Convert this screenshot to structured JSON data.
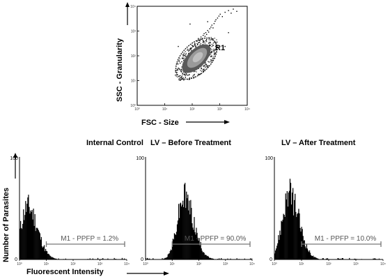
{
  "chart_data": [
    {
      "type": "scatter",
      "xlabel": "FSC - Size",
      "ylabel": "SSC - Granularity",
      "xscale": "log",
      "yscale": "log",
      "xlim": [
        1,
        10000
      ],
      "ylim": [
        1,
        10000
      ],
      "xticks": [
        "10⁰",
        "10¹",
        "10²",
        "10³",
        "10⁴"
      ],
      "yticks": [
        "10⁰",
        "10¹",
        "10²",
        "10³",
        "10⁴"
      ],
      "gate": {
        "name": "R1",
        "center": [
          150,
          280
        ]
      },
      "sample_points": [
        [
          60,
          90
        ],
        [
          70,
          120
        ],
        [
          80,
          200
        ],
        [
          90,
          150
        ],
        [
          100,
          260
        ],
        [
          110,
          180
        ],
        [
          120,
          330
        ],
        [
          130,
          240
        ],
        [
          140,
          410
        ],
        [
          150,
          300
        ],
        [
          160,
          520
        ],
        [
          170,
          360
        ],
        [
          180,
          440
        ],
        [
          200,
          600
        ],
        [
          220,
          500
        ],
        [
          240,
          700
        ],
        [
          260,
          820
        ],
        [
          280,
          640
        ],
        [
          300,
          900
        ],
        [
          320,
          760
        ],
        [
          350,
          1100
        ],
        [
          380,
          950
        ],
        [
          420,
          1300
        ],
        [
          460,
          1500
        ],
        [
          500,
          1800
        ],
        [
          550,
          1400
        ],
        [
          600,
          2100
        ],
        [
          650,
          2600
        ],
        [
          700,
          3000
        ],
        [
          800,
          3500
        ],
        [
          900,
          4200
        ],
        [
          1000,
          5000
        ],
        [
          1200,
          4000
        ],
        [
          1500,
          6000
        ],
        [
          2000,
          7000
        ],
        [
          2500,
          5500
        ],
        [
          3000,
          8000
        ],
        [
          4000,
          6500
        ],
        [
          40,
          60
        ],
        [
          30,
          250
        ],
        [
          250,
          30
        ],
        [
          500,
          70
        ],
        [
          1500,
          250
        ],
        [
          80,
          2000
        ],
        [
          350,
          2500
        ],
        [
          2000,
          900
        ],
        [
          600,
          150
        ]
      ]
    },
    {
      "type": "histogram",
      "title": "Internal Control",
      "xscale": "log",
      "xlim": [
        1,
        10000
      ],
      "ylim": [
        0,
        100
      ],
      "ylabel": "Number of Parasites",
      "xlabel": "Fluorescent Intensity",
      "peak_x": 2.0,
      "peak_height": 53,
      "marker": {
        "label": "M1 - PPFP = 1.2%",
        "range": [
          10,
          10000
        ]
      }
    },
    {
      "type": "histogram",
      "title": "LV – Before Treatment",
      "xscale": "log",
      "xlim": [
        1,
        10000
      ],
      "ylim": [
        0,
        100
      ],
      "peak_x": 28,
      "peak_height": 63,
      "marker": {
        "label": "M1 - PPFP = 90.0%",
        "range": [
          10,
          10000
        ]
      }
    },
    {
      "type": "histogram",
      "title": "LV – After Treatment",
      "xscale": "log",
      "xlim": [
        1,
        10000
      ],
      "ylim": [
        0,
        100
      ],
      "peak_x": 3.5,
      "peak_height": 65,
      "marker": {
        "label": "M1 - PPFP = 10.0%",
        "range": [
          10,
          10000
        ]
      }
    }
  ],
  "axis_labels": {
    "scatter_y": "SSC - Granularity",
    "scatter_x": "FSC - Size",
    "hist_y": "Number of Parasites",
    "hist_x": "Fluorescent Intensity"
  },
  "tick_labels": {
    "log_decades": [
      "10⁰",
      "10¹",
      "10²",
      "10³",
      "10⁴"
    ],
    "hist_y_top": "100",
    "hist_y_zero": "0"
  },
  "panel_titles": [
    "Internal Control",
    "LV – Before Treatment",
    "LV – After Treatment"
  ],
  "colors": {
    "ink": "#000000",
    "gate": "#222222",
    "marker": "#777777",
    "density_core": "#bfbfbf"
  }
}
